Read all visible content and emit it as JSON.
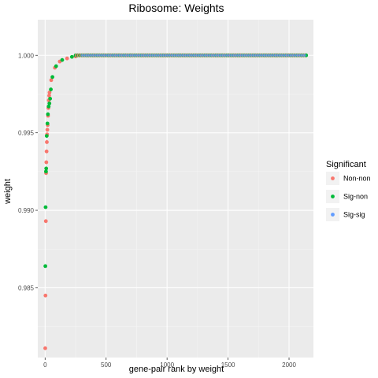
{
  "chart_data": {
    "type": "scatter",
    "title": "Ribosome: Weights",
    "xlabel": "gene-pair rank by weight",
    "ylabel": "weight",
    "xlim": [
      -60,
      2200
    ],
    "ylim": [
      0.9805,
      1.0023
    ],
    "x_ticks": [
      0,
      500,
      1000,
      1500,
      2000
    ],
    "y_ticks": [
      0.985,
      0.99,
      0.995,
      1.0
    ],
    "y_tick_labels": [
      "0.985",
      "0.990",
      "0.995",
      "1.000"
    ],
    "grid": true,
    "legend": {
      "title": "Significant",
      "position": "right",
      "entries": [
        {
          "name": "Non-non",
          "color": "#F8766D"
        },
        {
          "name": "Sig-non",
          "color": "#00BA38"
        },
        {
          "name": "Sig-sig",
          "color": "#619CFF"
        }
      ]
    },
    "series": [
      {
        "name": "Non-non",
        "color": "#F8766D",
        "points": [
          [
            1,
            0.9811
          ],
          [
            3,
            0.9845
          ],
          [
            6,
            0.9893
          ],
          [
            8,
            0.9924
          ],
          [
            10,
            0.9931
          ],
          [
            12,
            0.9938
          ],
          [
            14,
            0.9944
          ],
          [
            16,
            0.9949
          ],
          [
            18,
            0.9952
          ],
          [
            21,
            0.9955
          ],
          [
            24,
            0.9961
          ],
          [
            27,
            0.9966
          ],
          [
            30,
            0.9971
          ],
          [
            33,
            0.9974
          ],
          [
            36,
            0.9976
          ],
          [
            50,
            0.9984
          ],
          [
            80,
            0.9992
          ],
          [
            120,
            0.9996
          ],
          [
            180,
            0.9998
          ],
          [
            250,
            0.99993
          ],
          [
            400,
            1.0
          ],
          [
            600,
            1.0
          ],
          [
            800,
            1.0
          ],
          [
            1000,
            1.0
          ],
          [
            1200,
            1.0
          ],
          [
            1400,
            1.0
          ],
          [
            1600,
            1.0
          ],
          [
            1800,
            1.0
          ],
          [
            2000,
            1.0
          ],
          [
            2140,
            1.0
          ]
        ]
      },
      {
        "name": "Sig-non",
        "color": "#00BA38",
        "points": [
          [
            2,
            0.9864
          ],
          [
            4,
            0.9902
          ],
          [
            7,
            0.9925
          ],
          [
            9,
            0.9927
          ],
          [
            13,
            0.9948
          ],
          [
            19,
            0.9956
          ],
          [
            23,
            0.9962
          ],
          [
            29,
            0.9967
          ],
          [
            35,
            0.9969
          ],
          [
            41,
            0.9972
          ],
          [
            47,
            0.9978
          ],
          [
            60,
            0.9986
          ],
          [
            90,
            0.9993
          ],
          [
            140,
            0.9997
          ],
          [
            220,
            0.9999
          ],
          [
            350,
            1.0
          ],
          [
            700,
            1.0
          ],
          [
            1100,
            1.0
          ],
          [
            1500,
            1.0
          ],
          [
            1900,
            1.0
          ],
          [
            2100,
            1.0
          ]
        ]
      },
      {
        "name": "Sig-sig",
        "color": "#619CFF",
        "points": []
      }
    ]
  }
}
